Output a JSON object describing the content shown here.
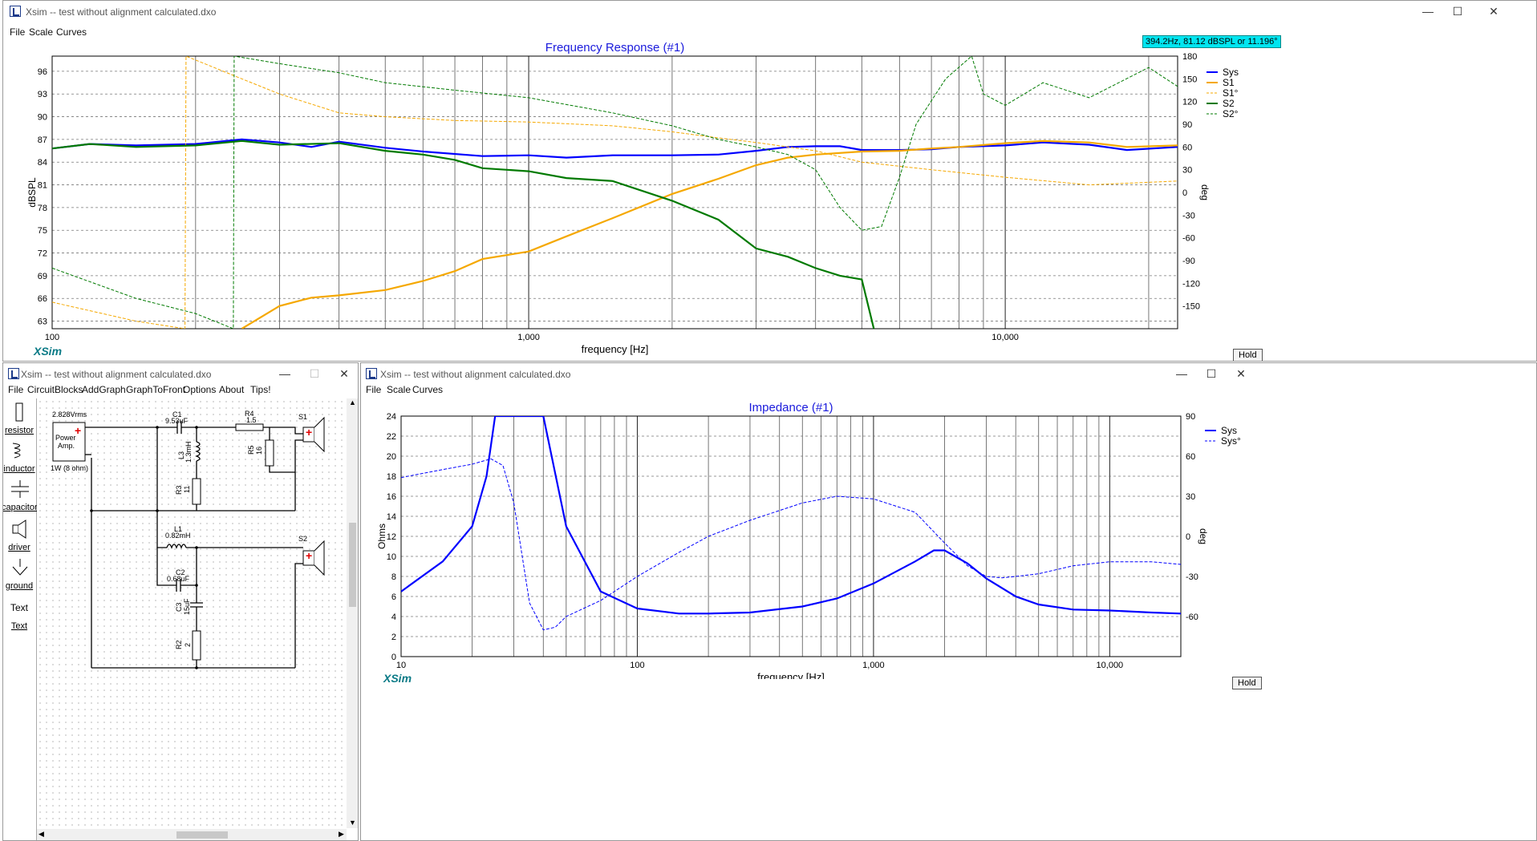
{
  "main_window": {
    "title": "Xsim -- test without alignment calculated.dxo",
    "menu": [
      "File",
      "Scale",
      "Curves"
    ],
    "cursor_readout": "394.2Hz, 81.12 dBSPL or 11.196°",
    "hold_label": "Hold",
    "brand": "XSim"
  },
  "circuit_window": {
    "title": "Xsim -- test without alignment calculated.dxo",
    "menu": [
      "File",
      "CircuitBlocks",
      "AddGraph",
      "GraphToFront",
      "Options",
      "About",
      "Tips!"
    ],
    "tools": [
      "resistor",
      "inductor",
      "capacitor",
      "driver",
      "ground",
      "Text",
      "Text"
    ],
    "labels": {
      "source": "2.828Vrms",
      "amp1": "Power",
      "amp2": "Amp.",
      "amp_rating": "1W (8 ohm)",
      "c1": "C1",
      "c1v": "9.53uF",
      "r4": "R4",
      "r4v": "1.5",
      "s1": "S1",
      "l3": "L3",
      "l3v": "1.3mH",
      "r5": "R5",
      "r5v": "16",
      "r3": "R3",
      "r3v": "11",
      "l1": "L1",
      "l1v": "0.82mH",
      "s2": "S2",
      "c2": "C2",
      "c2v": "0.68uF",
      "c3": "C3",
      "c3v": "15uF",
      "r2": "R2",
      "r2v": "2"
    }
  },
  "impedance_window": {
    "title": "Xsim -- test without alignment calculated.dxo",
    "menu": [
      "File",
      "Scale",
      "Curves"
    ],
    "hold_label": "Hold",
    "brand": "XSim"
  },
  "colors": {
    "sys": "#0000ff",
    "s1": "#f5a800",
    "s2": "#007a00",
    "title": "#1a1adc",
    "grid": "#444444",
    "tooltip": "#00e5f0"
  },
  "chart_data": [
    {
      "type": "line",
      "title": "Frequency Response (#1)",
      "xlabel": "frequency [Hz]",
      "ylabel": "dBSPL",
      "y2label": "deg",
      "xscale": "log",
      "xlim": [
        100,
        23000
      ],
      "ylim": [
        62,
        98
      ],
      "y2lim": [
        -180,
        180
      ],
      "x_tick_labels": [
        "100",
        "1,000",
        "10,000"
      ],
      "y_ticks": [
        63,
        66,
        69,
        72,
        75,
        78,
        81,
        84,
        87,
        90,
        93,
        96
      ],
      "y2_ticks": [
        -150,
        -120,
        -90,
        -60,
        -30,
        0,
        30,
        60,
        90,
        120,
        150,
        180
      ],
      "grid": true,
      "legend": "top-right",
      "series": [
        {
          "name": "Sys",
          "axis": "left",
          "style": "solid",
          "color": "#0000ff",
          "x": [
            100,
            120,
            150,
            200,
            250,
            300,
            350,
            400,
            500,
            600,
            800,
            1000,
            1200,
            1500,
            2000,
            2500,
            3000,
            3500,
            4000,
            4500,
            5000,
            6000,
            7000,
            8000,
            10000,
            12000,
            15000,
            18000,
            23000
          ],
          "y": [
            85.8,
            86.4,
            86.2,
            86.4,
            87.0,
            86.6,
            86.0,
            86.7,
            85.9,
            85.4,
            84.8,
            84.9,
            84.6,
            84.9,
            84.9,
            85.0,
            85.5,
            86.0,
            86.1,
            86.1,
            85.6,
            85.6,
            85.7,
            86.0,
            86.2,
            86.6,
            86.3,
            85.6,
            86.0
          ]
        },
        {
          "name": "S1",
          "axis": "left",
          "style": "solid",
          "color": "#f5a800",
          "x": [
            250,
            300,
            350,
            400,
            500,
            600,
            700,
            800,
            1000,
            1200,
            1500,
            2000,
            2500,
            3000,
            3500,
            4000,
            5000,
            6000,
            7000,
            8000,
            10000,
            12000,
            15000,
            18000,
            23000
          ],
          "y": [
            62.0,
            65.0,
            66.1,
            66.4,
            67.1,
            68.3,
            69.6,
            71.2,
            72.2,
            74.2,
            76.6,
            79.8,
            81.8,
            83.6,
            84.6,
            85.0,
            85.4,
            85.5,
            85.8,
            86.0,
            86.5,
            86.8,
            86.6,
            86.0,
            86.2
          ]
        },
        {
          "name": "S1°",
          "axis": "right",
          "style": "dashed",
          "color": "#f5a800",
          "x": [
            100,
            150,
            190,
            191,
            250,
            300,
            400,
            500,
            700,
            1000,
            1500,
            2000,
            2500,
            3000,
            4000,
            5000,
            7000,
            10000,
            15000,
            23000
          ],
          "y": [
            -145,
            -170,
            -180,
            180,
            150,
            130,
            105,
            100,
            95,
            93,
            88,
            80,
            72,
            66,
            55,
            40,
            30,
            20,
            10,
            15
          ]
        },
        {
          "name": "S2",
          "axis": "left",
          "style": "solid",
          "color": "#007a00",
          "x": [
            100,
            120,
            150,
            200,
            250,
            300,
            400,
            500,
            600,
            700,
            800,
            1000,
            1200,
            1500,
            2000,
            2500,
            3000,
            3500,
            4000,
            4500,
            5000,
            5300
          ],
          "y": [
            85.8,
            86.4,
            86.0,
            86.2,
            86.8,
            86.3,
            86.5,
            85.5,
            85.0,
            84.3,
            83.2,
            82.8,
            81.9,
            81.5,
            78.9,
            76.4,
            72.6,
            71.5,
            70.0,
            69.0,
            68.5,
            62.0
          ]
        },
        {
          "name": "S2°",
          "axis": "right",
          "style": "dashed",
          "color": "#007a00",
          "x": [
            100,
            150,
            200,
            240,
            241,
            300,
            400,
            500,
            700,
            1000,
            1500,
            2000,
            2500,
            3000,
            3500,
            4000,
            4500,
            5000,
            5500,
            6000,
            6500,
            7500,
            8500,
            9000,
            10000,
            12000,
            15000,
            20000,
            23000
          ],
          "y": [
            -100,
            -140,
            -160,
            -180,
            180,
            170,
            158,
            145,
            135,
            125,
            105,
            88,
            70,
            60,
            50,
            30,
            -20,
            -50,
            -45,
            20,
            90,
            150,
            180,
            130,
            115,
            145,
            125,
            165,
            140
          ]
        }
      ]
    },
    {
      "type": "line",
      "title": "Impedance (#1)",
      "xlabel": "frequency [Hz]",
      "ylabel": "Ohms",
      "y2label": "deg",
      "xscale": "log",
      "xlim": [
        10,
        20000
      ],
      "ylim": [
        0,
        24
      ],
      "y2lim": [
        -90,
        90
      ],
      "x_tick_labels": [
        "10",
        "100",
        "1,000",
        "10,000"
      ],
      "y_ticks": [
        0,
        2,
        4,
        6,
        8,
        10,
        12,
        14,
        16,
        18,
        20,
        22,
        24
      ],
      "y2_ticks": [
        -60,
        -30,
        0,
        30,
        60,
        90
      ],
      "grid": true,
      "legend": "top-right",
      "series": [
        {
          "name": "Sys",
          "axis": "left",
          "style": "solid",
          "color": "#0000ff",
          "x": [
            10,
            15,
            20,
            23,
            25,
            40,
            50,
            70,
            100,
            150,
            200,
            300,
            500,
            700,
            1000,
            1500,
            1800,
            2000,
            2500,
            3000,
            4000,
            5000,
            7000,
            10000,
            15000,
            20000
          ],
          "y": [
            6.5,
            9.5,
            13.0,
            18.0,
            24.0,
            24.0,
            13.0,
            6.5,
            4.8,
            4.3,
            4.3,
            4.4,
            5.0,
            5.8,
            7.3,
            9.5,
            10.6,
            10.6,
            9.3,
            7.8,
            6.0,
            5.2,
            4.7,
            4.6,
            4.4,
            4.3
          ]
        },
        {
          "name": "Sys°",
          "axis": "right",
          "style": "dashed",
          "color": "#0000ff",
          "x": [
            10,
            15,
            20,
            24,
            27,
            30,
            35,
            40,
            45,
            50,
            70,
            100,
            150,
            200,
            300,
            500,
            700,
            1000,
            1500,
            2000,
            2500,
            3000,
            3500,
            4000,
            5000,
            7000,
            10000,
            15000,
            20000
          ],
          "y": [
            44,
            50,
            54,
            58,
            53,
            25,
            -50,
            -70,
            -68,
            -60,
            -48,
            -30,
            -12,
            0,
            12,
            25,
            30,
            28,
            18,
            -5,
            -22,
            -30,
            -31,
            -30,
            -28,
            -22,
            -19,
            -19,
            -21
          ]
        }
      ]
    }
  ]
}
